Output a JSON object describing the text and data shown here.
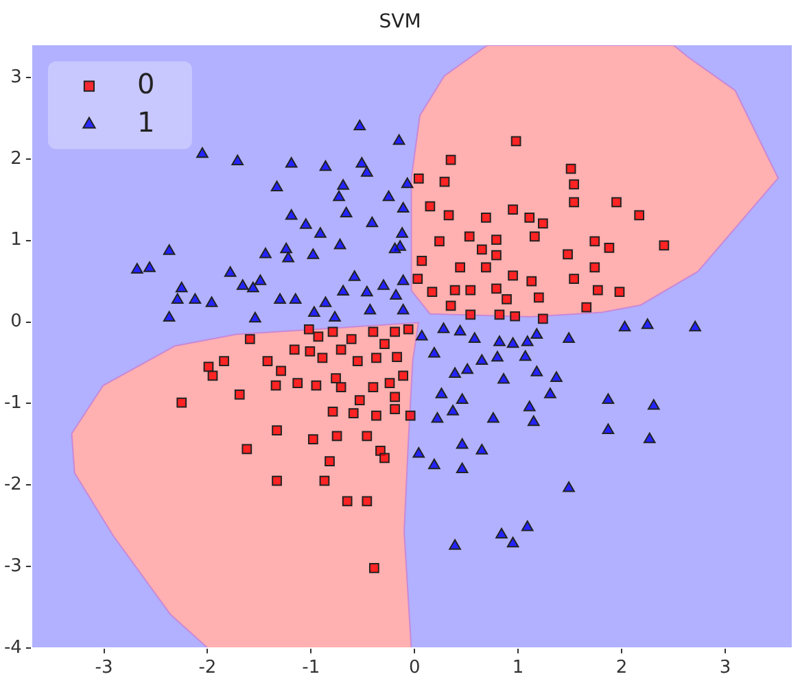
{
  "chart_data": {
    "type": "scatter",
    "title": "SVM",
    "xlim": [
      -3.7,
      3.65
    ],
    "ylim": [
      -4,
      3.4
    ],
    "xticks": [
      -3,
      -2,
      -1,
      0,
      1,
      2,
      3
    ],
    "yticks": [
      -4,
      -3,
      -2,
      -1,
      0,
      1,
      2,
      3
    ],
    "grid": false,
    "legend": "top left",
    "series": [
      {
        "name": "0",
        "color": "#ff0000",
        "marker": "square",
        "x": [
          0.98,
          0.35,
          0.04,
          0.29,
          1.51,
          1.54,
          1.54,
          1.95,
          2.17,
          2.41,
          0.15,
          0.33,
          0.69,
          0.95,
          1.11,
          1.24,
          0.24,
          0.53,
          0.79,
          1.16,
          1.48,
          1.74,
          1.88,
          1.74,
          1.54,
          1.77,
          1.98,
          1.66,
          1.24,
          0.07,
          0.65,
          0.79,
          0.69,
          0.95,
          1.13,
          1.2,
          0.89,
          0.54,
          0.39,
          0.17,
          0.03,
          0.97,
          0.82,
          0.54,
          0.35,
          0.44,
          0.79,
          -1.59,
          -2.25,
          -1.99,
          -1.95,
          -1.84,
          -1.69,
          -1.62,
          -1.33,
          -1.33,
          -0.87,
          -0.82,
          -0.65,
          -0.46,
          -0.39,
          -0.98,
          -0.75,
          -0.46,
          -0.33,
          -0.29,
          -0.79,
          -0.59,
          -0.37,
          -0.19,
          -0.04,
          -0.53,
          -0.19,
          -1.42,
          -1.29,
          -1.34,
          -1.13,
          -0.95,
          -0.71,
          -0.4,
          -0.24,
          -0.11,
          -1.16,
          -1.01,
          -0.89,
          -0.76,
          -0.55,
          -0.37,
          -0.17,
          -0.93,
          -0.79,
          -0.61,
          -0.4,
          -0.19,
          -0.06,
          -1.02,
          -0.29,
          -0.71
        ],
        "values": [
          2.22,
          1.99,
          1.76,
          1.72,
          1.88,
          1.69,
          1.47,
          1.47,
          1.31,
          0.94,
          1.42,
          1.31,
          1.28,
          1.38,
          1.28,
          1.21,
          0.99,
          1.05,
          1.01,
          1.05,
          0.83,
          0.99,
          0.91,
          0.67,
          0.53,
          0.39,
          0.37,
          0.18,
          0.04,
          0.75,
          0.89,
          0.82,
          0.67,
          0.57,
          0.5,
          0.3,
          0.28,
          0.39,
          0.39,
          0.37,
          0.53,
          0.07,
          0.09,
          0.09,
          0.2,
          0.67,
          0.41,
          -0.21,
          -0.99,
          -0.55,
          -0.66,
          -0.48,
          -0.89,
          -1.56,
          -1.33,
          -1.95,
          -1.95,
          -1.71,
          -2.2,
          -2.2,
          -3.02,
          -1.44,
          -1.4,
          -1.4,
          -1.58,
          -1.67,
          -1.1,
          -1.12,
          -1.15,
          -1.07,
          -1.15,
          -0.96,
          -0.92,
          -0.48,
          -0.6,
          -0.78,
          -0.75,
          -0.78,
          -0.8,
          -0.8,
          -0.75,
          -0.66,
          -0.34,
          -0.36,
          -0.44,
          -0.69,
          -0.48,
          -0.44,
          -0.43,
          -0.18,
          -0.12,
          -0.21,
          -0.12,
          -0.12,
          -0.09,
          -0.09,
          -0.27,
          -0.34
        ]
      },
      {
        "name": "1",
        "color": "#0000ff",
        "marker": "triangle",
        "x": [
          -0.53,
          -0.15,
          -2.05,
          -1.71,
          -1.19,
          -0.86,
          -0.51,
          -0.46,
          -1.33,
          -0.69,
          -0.73,
          -0.25,
          -0.07,
          -1.19,
          -0.66,
          -0.41,
          -1.05,
          -0.91,
          -0.72,
          -0.12,
          -0.14,
          -1.24,
          -1.44,
          -1.22,
          -0.98,
          -0.19,
          -2.37,
          -2.68,
          -2.56,
          -2.25,
          -2.29,
          -2.37,
          -2.12,
          -1.96,
          -1.78,
          -1.66,
          -1.56,
          -1.49,
          -1.3,
          -1.15,
          -0.86,
          -0.69,
          -0.58,
          -0.46,
          -0.3,
          -0.18,
          -1.54,
          -0.97,
          -0.77,
          -0.43,
          -0.11,
          -0.11,
          -0.11,
          2.03,
          2.25,
          2.71,
          1.49,
          1.87,
          2.31,
          1.87,
          2.27,
          1.49,
          1.09,
          0.84,
          0.95,
          0.39,
          0.04,
          0.19,
          0.46,
          0.46,
          0.65,
          0.76,
          0.22,
          0.37,
          0.26,
          0.46,
          1.11,
          1.15,
          1.31,
          1.37,
          0.86,
          1.18,
          0.39,
          0.51,
          1.07,
          0.8,
          0.65,
          1.09,
          0.95,
          0.82,
          0.58,
          0.44,
          0.19,
          0.07,
          0.28,
          1.18
        ],
        "values": [
          2.4,
          2.22,
          2.06,
          1.97,
          1.94,
          1.9,
          1.94,
          1.83,
          1.65,
          1.67,
          1.53,
          1.53,
          1.69,
          1.3,
          1.33,
          1.21,
          1.19,
          1.08,
          0.94,
          1.08,
          0.92,
          0.89,
          0.83,
          0.78,
          0.82,
          0.89,
          0.87,
          0.64,
          0.66,
          0.41,
          0.27,
          0.05,
          0.27,
          0.23,
          0.6,
          0.44,
          0.41,
          0.5,
          0.27,
          0.27,
          0.23,
          0.37,
          0.55,
          0.36,
          0.44,
          0.32,
          0.04,
          0.11,
          0.05,
          0.14,
          0.14,
          1.39,
          0.5,
          -0.07,
          -0.04,
          -0.07,
          -0.21,
          -0.96,
          -1.03,
          -1.33,
          -1.44,
          -2.04,
          -2.52,
          -2.61,
          -2.72,
          -2.75,
          -1.62,
          -1.76,
          -1.81,
          -1.51,
          -1.58,
          -1.19,
          -1.19,
          -1.1,
          -0.89,
          -0.96,
          -1.05,
          -1.23,
          -0.89,
          -0.69,
          -0.71,
          -0.62,
          -0.64,
          -0.59,
          -0.43,
          -0.44,
          -0.48,
          -0.25,
          -0.27,
          -0.25,
          -0.21,
          -0.12,
          -0.39,
          -0.18,
          -0.09,
          -0.16
        ]
      }
    ]
  }
}
